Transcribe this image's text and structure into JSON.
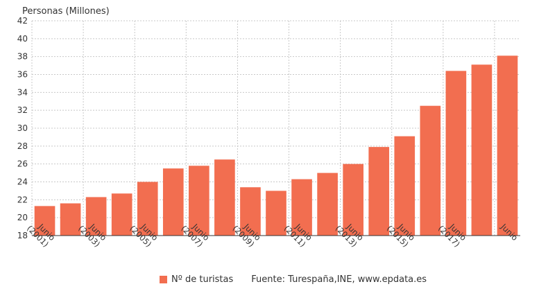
{
  "chart_data": {
    "type": "bar",
    "title": "",
    "ylabel": "Personas (Millones)",
    "xlabel": "",
    "ylim": [
      18,
      42
    ],
    "yticks": [
      18,
      20,
      22,
      24,
      26,
      28,
      30,
      32,
      34,
      36,
      38,
      40,
      42
    ],
    "grid": true,
    "legend_position": "bottom",
    "bar_color": "#F26E50",
    "categories": [
      "Junio (2001)",
      "",
      "Junio (2003)",
      "",
      "Junio (2005)",
      "",
      "Junio (2007)",
      "",
      "Junio (2009)",
      "",
      "Junio (2011)",
      "",
      "Junio (2013)",
      "",
      "Junio (2015)",
      "",
      "Junio (2017)",
      "",
      "Junio"
    ],
    "series": [
      {
        "name": "Nº de turistas",
        "values": [
          21.3,
          21.6,
          22.3,
          22.7,
          24.0,
          25.5,
          25.8,
          26.5,
          23.4,
          23.0,
          24.3,
          25.0,
          26.0,
          27.9,
          29.1,
          32.5,
          36.4,
          37.1,
          38.1
        ]
      }
    ]
  },
  "legend": {
    "label": "Nº de turistas",
    "source": "Fuente: Turespaña,INE, www.epdata.es"
  }
}
